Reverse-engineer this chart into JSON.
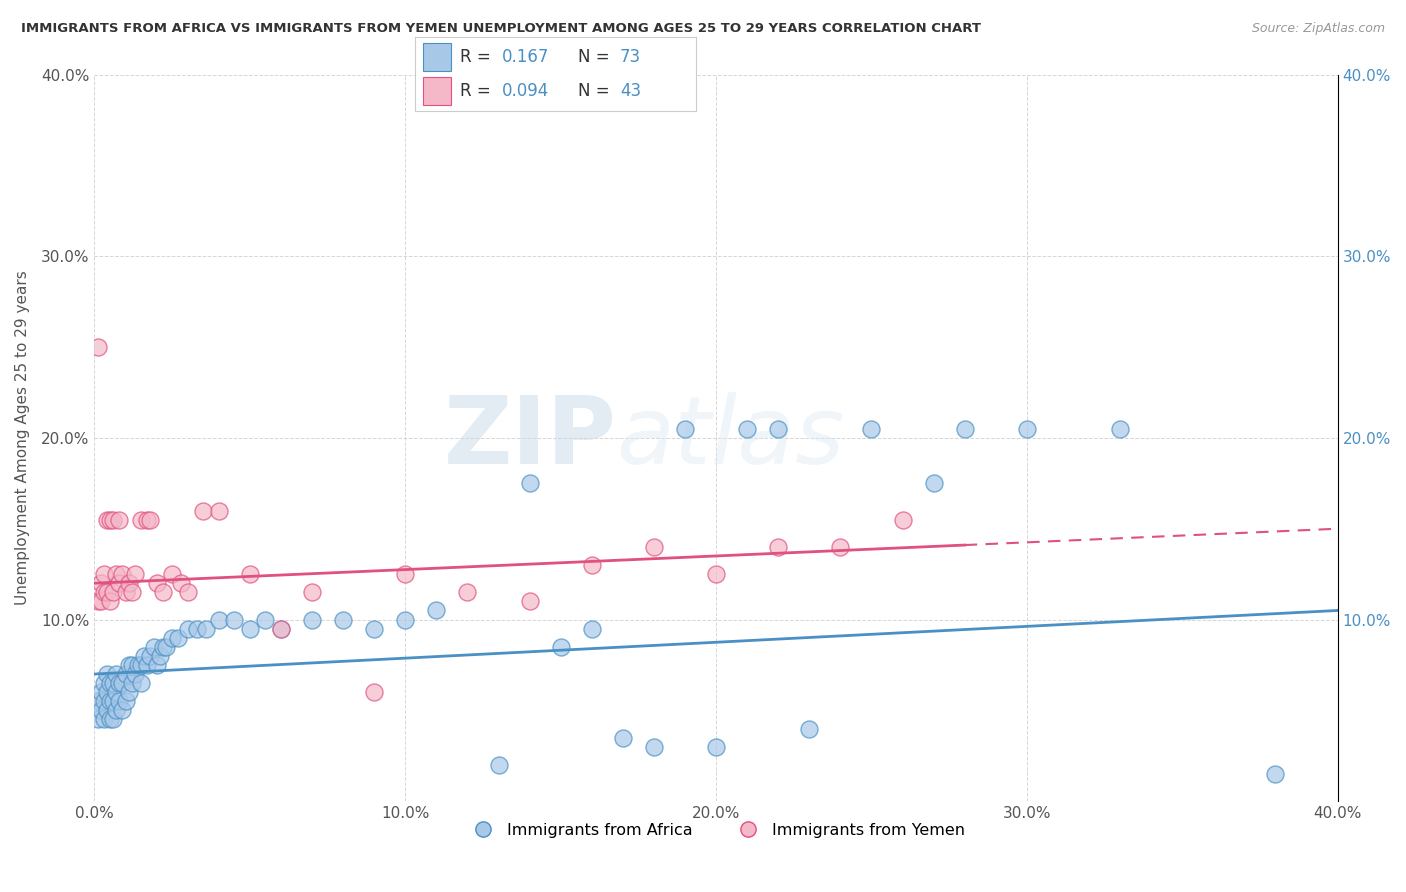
{
  "title": "IMMIGRANTS FROM AFRICA VS IMMIGRANTS FROM YEMEN UNEMPLOYMENT AMONG AGES 25 TO 29 YEARS CORRELATION CHART",
  "source": "Source: ZipAtlas.com",
  "ylabel": "Unemployment Among Ages 25 to 29 years",
  "legend_label1": "Immigrants from Africa",
  "legend_label2": "Immigrants from Yemen",
  "R1": 0.167,
  "N1": 73,
  "R2": 0.094,
  "N2": 43,
  "color_blue": "#a8c8e8",
  "color_pink": "#f4b8c8",
  "color_blue_line": "#4a90c4",
  "color_pink_line": "#e05080",
  "color_blue_text": "#4a90c4",
  "xlim": [
    0.0,
    0.4
  ],
  "ylim": [
    0.0,
    0.4
  ],
  "xticks": [
    0.0,
    0.1,
    0.2,
    0.3,
    0.4
  ],
  "yticks": [
    0.0,
    0.1,
    0.2,
    0.3,
    0.4
  ],
  "xticklabels": [
    "0.0%",
    "10.0%",
    "20.0%",
    "30.0%",
    "40.0%"
  ],
  "yticklabels": [
    "",
    "10.0%",
    "20.0%",
    "30.0%",
    "40.0%"
  ],
  "right_yticklabels": [
    "",
    "10.0%",
    "20.0%",
    "30.0%",
    "40.0%"
  ],
  "watermark_zip": "ZIP",
  "watermark_atlas": "atlas",
  "blue_scatter_x": [
    0.001,
    0.001,
    0.002,
    0.002,
    0.003,
    0.003,
    0.003,
    0.004,
    0.004,
    0.004,
    0.005,
    0.005,
    0.005,
    0.006,
    0.006,
    0.006,
    0.007,
    0.007,
    0.007,
    0.008,
    0.008,
    0.009,
    0.009,
    0.01,
    0.01,
    0.011,
    0.011,
    0.012,
    0.012,
    0.013,
    0.014,
    0.015,
    0.015,
    0.016,
    0.017,
    0.018,
    0.019,
    0.02,
    0.021,
    0.022,
    0.023,
    0.025,
    0.027,
    0.03,
    0.033,
    0.036,
    0.04,
    0.045,
    0.05,
    0.055,
    0.06,
    0.07,
    0.08,
    0.09,
    0.1,
    0.11,
    0.13,
    0.14,
    0.15,
    0.16,
    0.17,
    0.18,
    0.19,
    0.2,
    0.21,
    0.22,
    0.23,
    0.25,
    0.27,
    0.28,
    0.3,
    0.33,
    0.38
  ],
  "blue_scatter_y": [
    0.055,
    0.045,
    0.05,
    0.06,
    0.045,
    0.055,
    0.065,
    0.05,
    0.06,
    0.07,
    0.045,
    0.055,
    0.065,
    0.045,
    0.055,
    0.065,
    0.05,
    0.06,
    0.07,
    0.055,
    0.065,
    0.05,
    0.065,
    0.055,
    0.07,
    0.06,
    0.075,
    0.065,
    0.075,
    0.07,
    0.075,
    0.075,
    0.065,
    0.08,
    0.075,
    0.08,
    0.085,
    0.075,
    0.08,
    0.085,
    0.085,
    0.09,
    0.09,
    0.095,
    0.095,
    0.095,
    0.1,
    0.1,
    0.095,
    0.1,
    0.095,
    0.1,
    0.1,
    0.095,
    0.1,
    0.105,
    0.02,
    0.175,
    0.085,
    0.095,
    0.035,
    0.03,
    0.205,
    0.03,
    0.205,
    0.205,
    0.04,
    0.205,
    0.175,
    0.205,
    0.205,
    0.205,
    0.015
  ],
  "pink_scatter_x": [
    0.001,
    0.001,
    0.002,
    0.002,
    0.003,
    0.003,
    0.004,
    0.004,
    0.005,
    0.005,
    0.006,
    0.006,
    0.007,
    0.008,
    0.008,
    0.009,
    0.01,
    0.011,
    0.012,
    0.013,
    0.015,
    0.017,
    0.018,
    0.02,
    0.022,
    0.025,
    0.028,
    0.03,
    0.035,
    0.04,
    0.05,
    0.06,
    0.07,
    0.09,
    0.1,
    0.12,
    0.14,
    0.16,
    0.18,
    0.2,
    0.22,
    0.24,
    0.26
  ],
  "pink_scatter_y": [
    0.25,
    0.11,
    0.11,
    0.12,
    0.115,
    0.125,
    0.115,
    0.155,
    0.11,
    0.155,
    0.115,
    0.155,
    0.125,
    0.12,
    0.155,
    0.125,
    0.115,
    0.12,
    0.115,
    0.125,
    0.155,
    0.155,
    0.155,
    0.12,
    0.115,
    0.125,
    0.12,
    0.115,
    0.16,
    0.16,
    0.125,
    0.095,
    0.115,
    0.06,
    0.125,
    0.115,
    0.11,
    0.13,
    0.14,
    0.125,
    0.14,
    0.14,
    0.155
  ],
  "blue_trend_x0": 0.0,
  "blue_trend_y0": 0.07,
  "blue_trend_x1": 0.4,
  "blue_trend_y1": 0.105,
  "pink_trend_x0": 0.0,
  "pink_trend_y0": 0.12,
  "pink_trend_x1": 0.4,
  "pink_trend_y1": 0.15
}
